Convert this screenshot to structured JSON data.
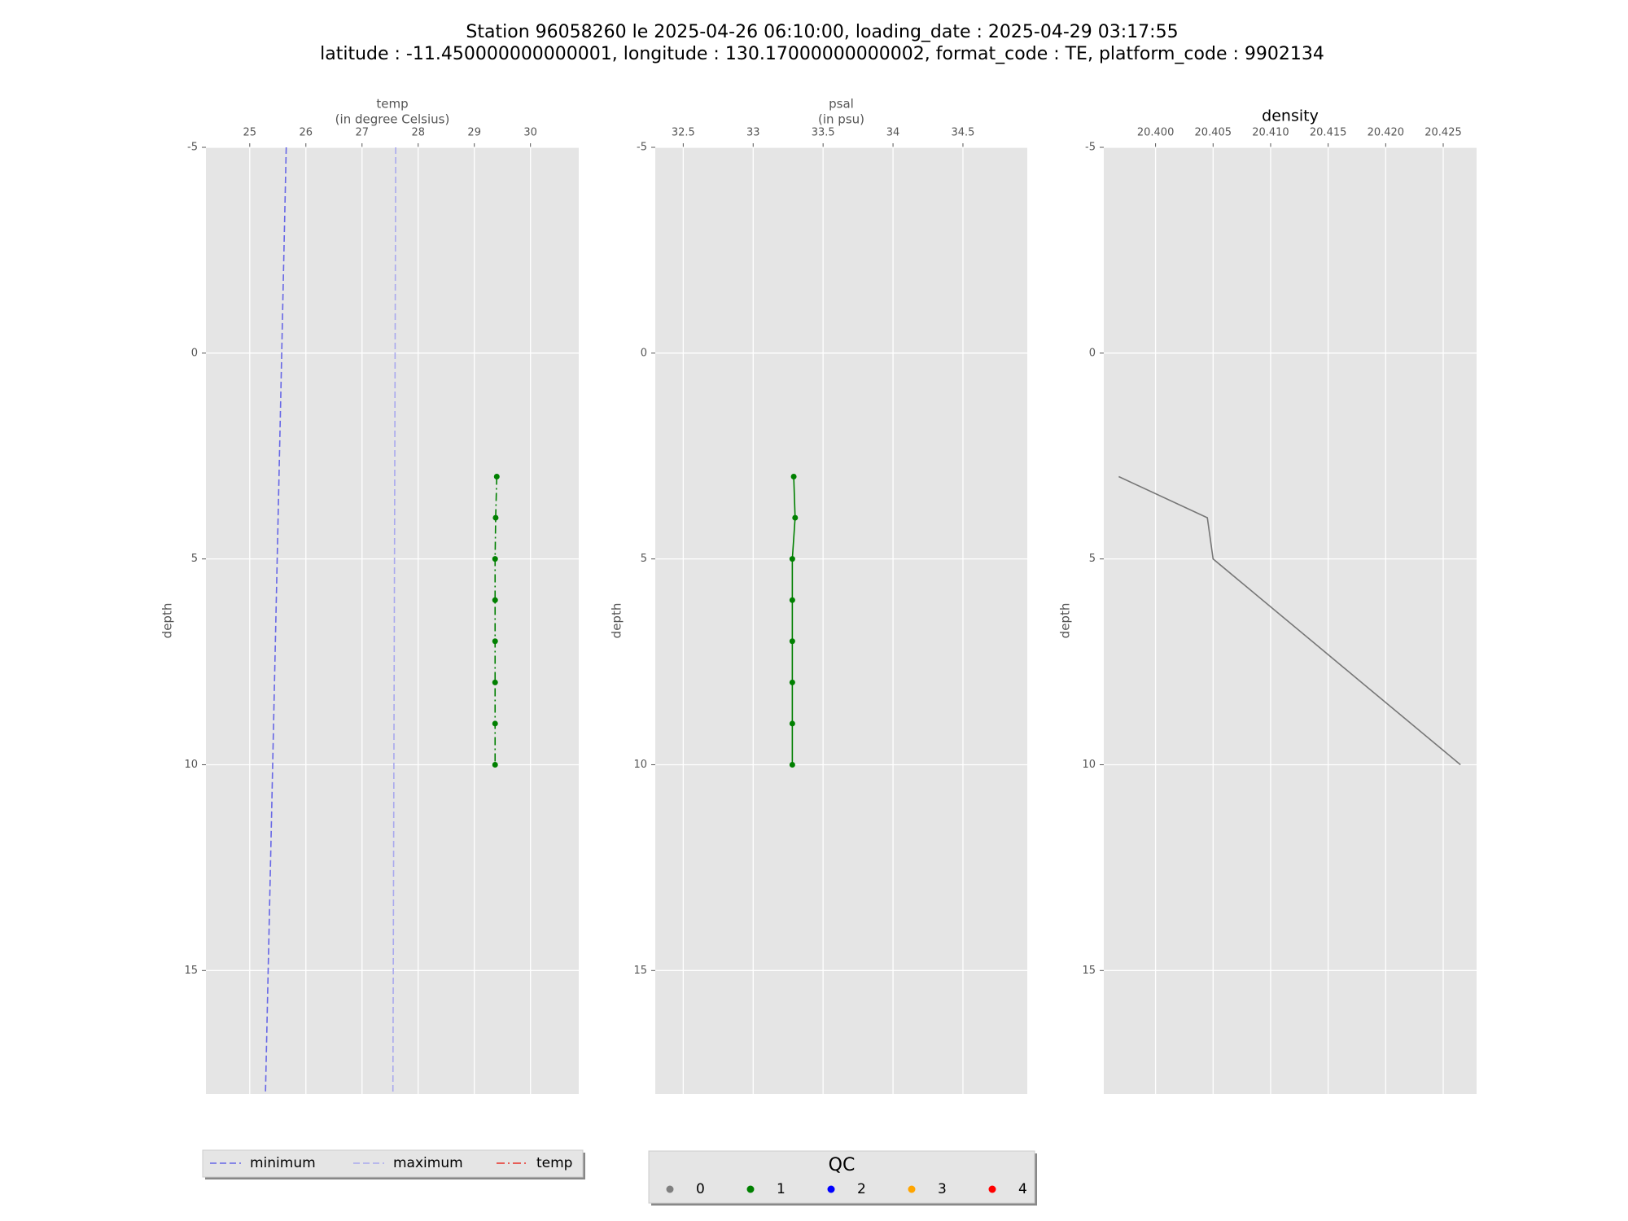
{
  "suptitle": [
    "Station 96058260 le 2025-04-26 06:10:00, loading_date : 2025-04-29 03:17:55",
    "latitude : -11.450000000000001, longitude : 130.17000000000002, format_code : TE, platform_code : 9902134"
  ],
  "chart_data": [
    {
      "type": "profile",
      "xlabel": [
        "temp",
        "(in degree Celsius)"
      ],
      "ylabel": "depth",
      "xlim": [
        24.22,
        30.86
      ],
      "xticks": [
        25,
        26,
        27,
        28,
        29,
        30
      ],
      "ylim": [
        -5,
        18
      ],
      "yticks": [
        -5,
        0,
        5,
        10,
        15
      ],
      "grid": true,
      "series": [
        {
          "name": "minimum",
          "color": "#6767e6",
          "legend_color": "#6767e6",
          "style": "dashed",
          "x": [
            25.65,
            25.28
          ],
          "y": [
            -5,
            18
          ]
        },
        {
          "name": "maximum",
          "color": "#a9a9ee",
          "legend_color": "#a9a9ee",
          "style": "dashed",
          "x": [
            27.6,
            27.55
          ],
          "y": [
            -5,
            18
          ]
        },
        {
          "name": "temp",
          "color": "#008000",
          "legend_color": "#e8312a",
          "style": "dashdot",
          "x": [
            29.4,
            29.38,
            29.37,
            29.37,
            29.37,
            29.37,
            29.37,
            29.37
          ],
          "y": [
            3,
            4,
            5,
            6,
            7,
            8,
            9,
            10
          ],
          "qc": [
            1,
            1,
            1,
            1,
            1,
            1,
            1,
            1
          ]
        }
      ]
    },
    {
      "type": "profile",
      "xlabel": [
        "psal",
        "(in psu)"
      ],
      "ylabel": "depth",
      "xlim": [
        32.3,
        34.96
      ],
      "xticks": [
        32.5,
        33.0,
        33.5,
        34.0,
        34.5
      ],
      "ylim": [
        -5,
        18
      ],
      "yticks": [
        -5,
        0,
        5,
        10,
        15
      ],
      "grid": true,
      "series": [
        {
          "color": "#008000",
          "style": "solid",
          "x": [
            33.29,
            33.3,
            33.28,
            33.28,
            33.28,
            33.28,
            33.28,
            33.28
          ],
          "y": [
            3,
            4,
            5,
            6,
            7,
            8,
            9,
            10
          ],
          "qc": [
            1,
            1,
            1,
            1,
            1,
            1,
            1,
            1
          ]
        }
      ]
    },
    {
      "type": "profile",
      "title": "density",
      "ylabel": "depth",
      "xlim": [
        20.3955,
        20.4279
      ],
      "xticks": [
        {
          "value": 20.4,
          "label": "20.400"
        },
        {
          "value": 20.405,
          "label": "20.405"
        },
        {
          "value": 20.41,
          "label": "20.410"
        },
        {
          "value": 20.415,
          "label": "20.415"
        },
        {
          "value": 20.42,
          "label": "20.420"
        },
        {
          "value": 20.425,
          "label": "20.425"
        }
      ],
      "ylim": [
        -5,
        18
      ],
      "yticks": [
        -5,
        0,
        5,
        10,
        15
      ],
      "grid": true,
      "series": [
        {
          "color": "#777777",
          "style": "solid",
          "x": [
            20.3968,
            20.4045,
            20.405,
            20.4093,
            20.4136,
            20.4179,
            20.4222,
            20.4265
          ],
          "y": [
            3,
            4,
            5,
            6,
            7,
            8,
            9,
            10
          ]
        }
      ]
    }
  ],
  "qc_legend": {
    "title": "QC",
    "labels": [
      "0",
      "1",
      "2",
      "3",
      "4"
    ],
    "colors": [
      "#808080",
      "#008000",
      "#0000ff",
      "#ffa500",
      "#ff0000"
    ]
  }
}
